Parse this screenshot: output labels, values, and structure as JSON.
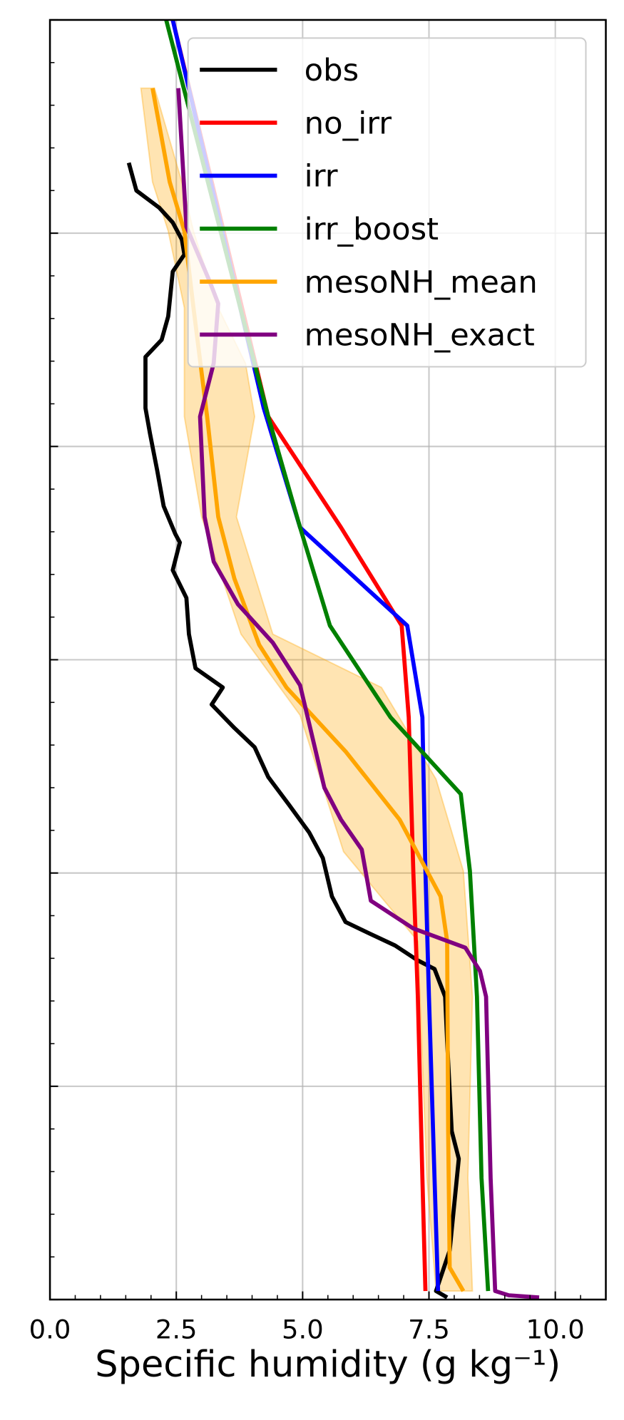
{
  "chart_data": {
    "type": "line",
    "x_label": "Specific humidity (g kg⁻¹)",
    "xlim": [
      0,
      11
    ],
    "ylim": [
      0,
      6
    ],
    "xticks": [
      {
        "value": 0,
        "label": "0.0"
      },
      {
        "value": 2.5,
        "label": "2.5"
      },
      {
        "value": 5,
        "label": "5.0"
      },
      {
        "value": 7.5,
        "label": "7.5"
      },
      {
        "value": 10,
        "label": "10.0"
      }
    ],
    "yticks": [
      0,
      1,
      2,
      3,
      4,
      5,
      6
    ],
    "xminorticks": [
      0.5,
      1,
      1.5,
      2,
      3,
      3.5,
      4,
      4.5,
      5.5,
      6,
      6.5,
      7,
      8,
      8.5,
      9,
      9.5,
      10.5,
      11
    ],
    "yminorticks": [
      0.2,
      0.4,
      0.6,
      0.8,
      1.2,
      1.4,
      1.6,
      1.8,
      2.2,
      2.4,
      2.6,
      2.8,
      3.2,
      3.4,
      3.6,
      3.8,
      4.2,
      4.4,
      4.6,
      4.8,
      5.2,
      5.4,
      5.6,
      5.8
    ],
    "grid": true,
    "tick_direction": "in",
    "legend_position": "upper right",
    "series": [
      {
        "name": "obs",
        "color": "#000000",
        "x": [
          1.56,
          1.71,
          2.16,
          2.43,
          2.61,
          2.66,
          2.43,
          2.34,
          2.21,
          1.89,
          1.89,
          1.98,
          2.12,
          2.25,
          2.48,
          2.57,
          2.43,
          2.7,
          2.75,
          2.88,
          3.42,
          3.2,
          3.65,
          4.05,
          4.32,
          4.73,
          5.13,
          5.4,
          5.58,
          5.85,
          6.29,
          6.83,
          7.28,
          7.61,
          7.82,
          7.86,
          7.95,
          8.09,
          7.91,
          7.64,
          7.86
        ],
        "y": [
          5.33,
          5.2,
          5.12,
          5.05,
          4.97,
          4.9,
          4.82,
          4.61,
          4.5,
          4.42,
          4.18,
          4.06,
          3.89,
          3.72,
          3.59,
          3.55,
          3.42,
          3.29,
          3.12,
          2.96,
          2.87,
          2.79,
          2.68,
          2.59,
          2.45,
          2.32,
          2.19,
          2.07,
          1.89,
          1.77,
          1.72,
          1.66,
          1.59,
          1.55,
          1.42,
          1.21,
          0.79,
          0.66,
          0.23,
          0.04,
          0.01
        ]
      },
      {
        "name": "no_irr",
        "color": "#ff0000",
        "x": [
          2.43,
          4.32,
          5.76,
          6.96,
          7.1,
          7.19,
          7.28,
          7.37,
          7.43
        ],
        "y": [
          6.0,
          4.14,
          3.62,
          3.16,
          2.73,
          2.01,
          1.42,
          0.57,
          0.04
        ]
      },
      {
        "name": "irr",
        "color": "#0000ff",
        "x": [
          2.43,
          4.23,
          4.95,
          7.07,
          7.37,
          7.43,
          7.5,
          7.61,
          7.68
        ],
        "y": [
          6.0,
          4.18,
          3.62,
          3.16,
          2.73,
          2.01,
          1.42,
          0.57,
          0.04
        ]
      },
      {
        "name": "irr_boost",
        "color": "#008000",
        "x": [
          2.3,
          4.32,
          4.95,
          5.54,
          6.74,
          8.13,
          8.31,
          8.45,
          8.54,
          8.67
        ],
        "y": [
          6.0,
          4.14,
          3.62,
          3.16,
          2.73,
          2.37,
          2.01,
          1.42,
          0.57,
          0.04
        ]
      },
      {
        "name": "mesoNH_mean",
        "color": "#ffa500",
        "x": [
          2.03,
          2.37,
          2.66,
          2.84,
          3.11,
          3.33,
          3.65,
          4.14,
          4.68,
          5.85,
          6.92,
          7.73,
          7.86,
          7.88,
          7.91,
          8.18
        ],
        "y": [
          5.68,
          5.24,
          5.01,
          4.65,
          4.14,
          3.67,
          3.38,
          3.07,
          2.87,
          2.57,
          2.25,
          1.89,
          1.68,
          0.79,
          0.15,
          0.04
        ],
        "spread": {
          "color": "#ffa500",
          "upper": {
            "x": [
              2.07,
              2.61,
              2.84,
              3.33,
              3.87,
              4.05,
              3.69,
              4.41,
              6.56,
              7.64,
              8.18,
              8.36,
              8.27,
              8.36
            ],
            "y": [
              5.68,
              5.24,
              5.01,
              4.65,
              4.39,
              4.14,
              3.67,
              3.12,
              2.87,
              2.44,
              2.01,
              1.42,
              0.57,
              0.04
            ]
          },
          "lower": {
            "x": [
              1.8,
              2.03,
              2.34,
              2.66,
              2.66,
              3.0,
              3.78,
              4.95,
              5.81,
              7.28,
              7.46,
              7.64
            ],
            "y": [
              5.68,
              5.24,
              5.01,
              4.65,
              4.14,
              3.67,
              3.12,
              2.74,
              2.1,
              1.68,
              0.57,
              0.04
            ]
          }
        }
      },
      {
        "name": "mesoNH_exact",
        "color": "#800080",
        "x": [
          2.54,
          2.7,
          3.15,
          3.33,
          3.24,
          2.97,
          3.06,
          3.24,
          3.72,
          4.41,
          4.95,
          5.43,
          5.76,
          6.17,
          6.35,
          7.19,
          8.22,
          8.51,
          8.63,
          8.72,
          8.81,
          9.08,
          9.68
        ],
        "y": [
          5.68,
          5.03,
          4.78,
          4.67,
          4.39,
          4.14,
          3.67,
          3.46,
          3.26,
          3.08,
          2.88,
          2.4,
          2.25,
          2.11,
          1.87,
          1.74,
          1.65,
          1.54,
          1.42,
          0.57,
          0.04,
          0.02,
          0.01
        ]
      }
    ]
  }
}
